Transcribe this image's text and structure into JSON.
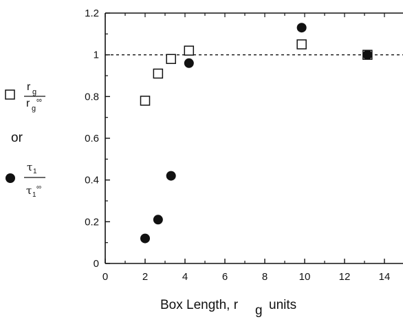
{
  "chart_data": {
    "type": "scatter",
    "title": "",
    "xlabel": {
      "prefix": "Box Length, r",
      "subscript": "g",
      "suffix": "units"
    },
    "ylabel": {
      "series_1_label": {
        "numerator": "r",
        "numerator_sub": "g",
        "denominator": "r",
        "denominator_sub": "g",
        "denominator_sup": "∞"
      },
      "connector": "or",
      "series_2_label": {
        "numerator": "τ",
        "numerator_sub": "1",
        "denominator": "τ",
        "denominator_sub": "1",
        "denominator_sup": "∞"
      }
    },
    "xlim": [
      0,
      15
    ],
    "ylim": [
      0,
      1.2
    ],
    "x_ticks": [
      "0",
      "2",
      "4",
      "6",
      "8",
      "10",
      "12",
      "14"
    ],
    "y_ticks": [
      "0",
      "0.2",
      "0.4",
      "0.6",
      "0.8",
      "1",
      "1.2"
    ],
    "reference_line": {
      "y": 1,
      "style": "dashed"
    },
    "series": [
      {
        "marker": "open-square",
        "color": "#111111",
        "points": [
          {
            "x": 2.0,
            "y": 0.78
          },
          {
            "x": 2.65,
            "y": 0.91
          },
          {
            "x": 3.3,
            "y": 0.98
          },
          {
            "x": 4.2,
            "y": 1.02
          },
          {
            "x": 9.85,
            "y": 1.05
          },
          {
            "x": 13.15,
            "y": 1.0
          }
        ]
      },
      {
        "marker": "filled-circle",
        "color": "#111111",
        "points": [
          {
            "x": 2.0,
            "y": 0.12
          },
          {
            "x": 2.65,
            "y": 0.21
          },
          {
            "x": 3.3,
            "y": 0.42
          },
          {
            "x": 4.2,
            "y": 0.96
          },
          {
            "x": 9.85,
            "y": 1.13
          },
          {
            "x": 13.15,
            "y": 1.0
          }
        ]
      }
    ]
  }
}
